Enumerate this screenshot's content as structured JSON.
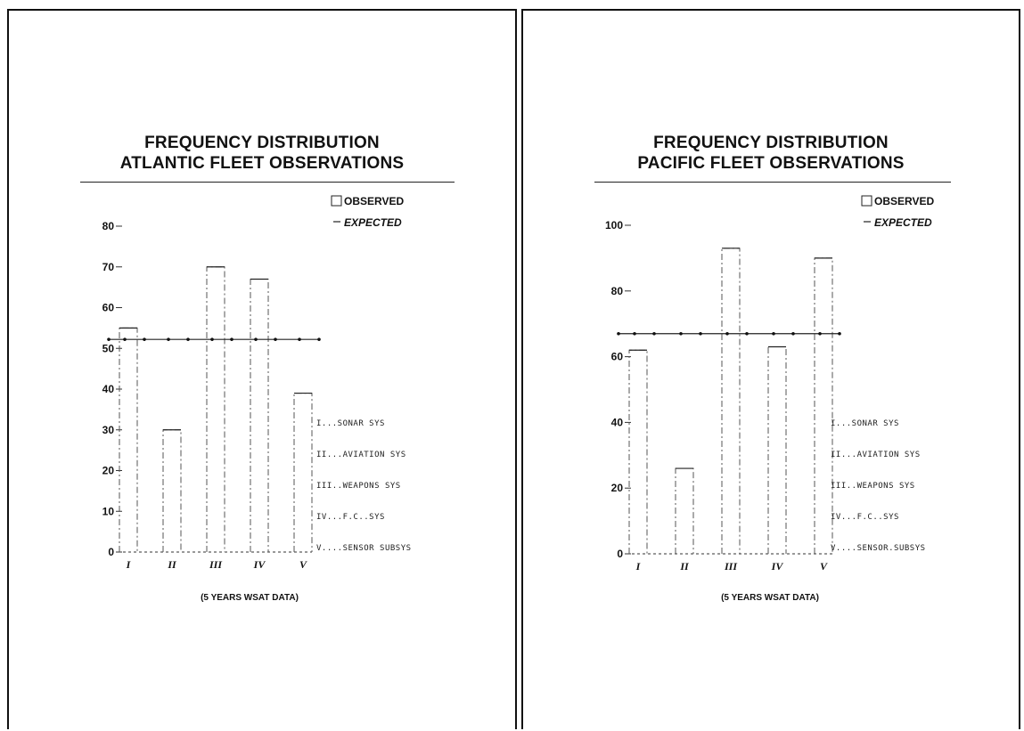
{
  "chart_data": [
    {
      "type": "bar",
      "title": "FREQUENCY DISTRIBUTION",
      "subtitle": "ATLANTIC FLEET OBSERVATIONS",
      "categories": [
        "I",
        "II",
        "III",
        "IV",
        "V"
      ],
      "series": [
        {
          "name": "OBSERVED",
          "kind": "bar",
          "values": [
            55,
            30,
            70,
            67,
            39
          ]
        },
        {
          "name": "EXPECTED",
          "kind": "line",
          "values": [
            52.2,
            52.2,
            52.2,
            52.2,
            52.2
          ]
        }
      ],
      "ylim": [
        0,
        80
      ],
      "yticks": [
        0,
        10,
        20,
        30,
        40,
        50,
        60,
        70,
        80
      ],
      "ytick_labels": [
        "0",
        "10",
        "20",
        "30",
        "40",
        "50",
        "60",
        "70",
        "80"
      ],
      "legend_position": "top-right",
      "category_key": [
        "I...SONAR SYS",
        "II...AVIATION SYS",
        "III..WEAPONS SYS",
        "IV...F.C..SYS",
        "V....SENSOR SUBSYS"
      ],
      "footnote": "(5 YEARS WSAT DATA)",
      "grid": false
    },
    {
      "type": "bar",
      "title": "FREQUENCY DISTRIBUTION",
      "subtitle": "PACIFIC FLEET OBSERVATIONS",
      "categories": [
        "I",
        "II",
        "III",
        "IV",
        "V"
      ],
      "series": [
        {
          "name": "OBSERVED",
          "kind": "bar",
          "values": [
            62,
            26,
            93,
            63,
            90
          ]
        },
        {
          "name": "EXPECTED",
          "kind": "line",
          "values": [
            67,
            67,
            67,
            67,
            67
          ]
        }
      ],
      "ylim": [
        0,
        100
      ],
      "yticks": [
        0,
        20,
        40,
        60,
        80,
        100
      ],
      "ytick_labels": [
        "0",
        "20",
        "40",
        "60",
        "80",
        "100"
      ],
      "legend_position": "top-right",
      "category_key": [
        "I...SONAR SYS",
        "II...AVIATION SYS",
        "III..WEAPONS SYS",
        "IV...F.C..SYS",
        "V....SENSOR.SUBSYS"
      ],
      "footnote": "(5 YEARS WSAT DATA)",
      "grid": false
    }
  ]
}
